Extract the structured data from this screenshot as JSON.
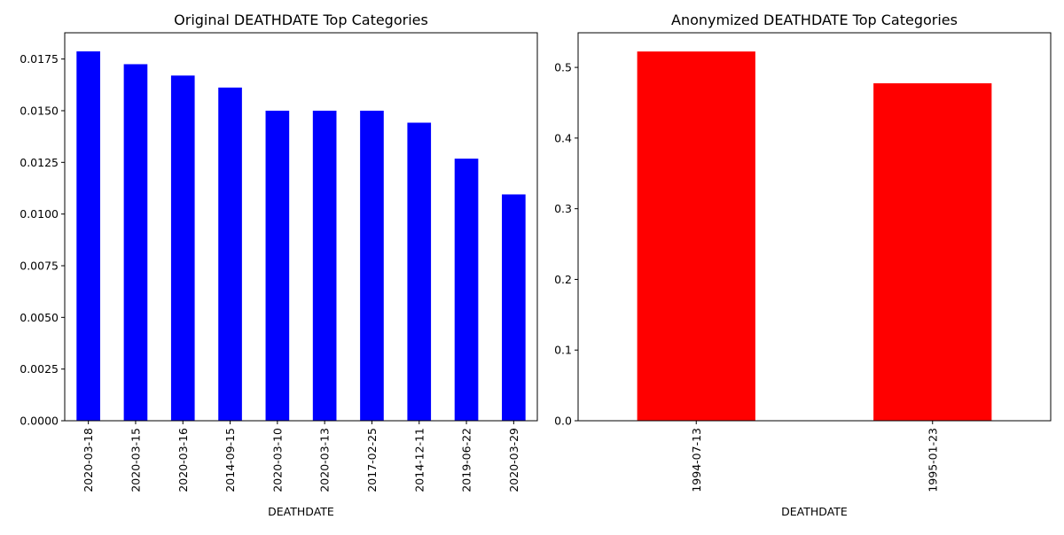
{
  "chart_data": [
    {
      "type": "bar",
      "title": "Original DEATHDATE Top Categories",
      "xlabel": "DEATHDATE",
      "ylabel": "",
      "color": "#0000ff",
      "categories": [
        "2020-03-18",
        "2020-03-15",
        "2020-03-16",
        "2014-09-15",
        "2020-03-10",
        "2020-03-13",
        "2017-02-25",
        "2014-12-11",
        "2019-06-22",
        "2020-03-29"
      ],
      "values": [
        0.01787,
        0.01725,
        0.0167,
        0.01612,
        0.015,
        0.015,
        0.015,
        0.01442,
        0.01268,
        0.01095
      ],
      "ylim": [
        0,
        0.01877
      ],
      "yticks": [
        0.0,
        0.0025,
        0.005,
        0.0075,
        0.01,
        0.0125,
        0.015,
        0.0175
      ],
      "ytick_labels": [
        "0.0000",
        "0.0025",
        "0.0050",
        "0.0075",
        "0.0100",
        "0.0125",
        "0.0150",
        "0.0175"
      ],
      "grid": false,
      "legend": "none"
    },
    {
      "type": "bar",
      "title": "Anonymized DEATHDATE Top Categories",
      "xlabel": "DEATHDATE",
      "ylabel": "",
      "color": "#ff0000",
      "categories": [
        "1994-07-13",
        "1995-01-23"
      ],
      "values": [
        0.5225,
        0.4775
      ],
      "ylim": [
        0,
        0.549
      ],
      "yticks": [
        0.0,
        0.1,
        0.2,
        0.3,
        0.4,
        0.5
      ],
      "ytick_labels": [
        "0.0",
        "0.1",
        "0.2",
        "0.3",
        "0.4",
        "0.5"
      ],
      "grid": false,
      "legend": "none"
    }
  ]
}
